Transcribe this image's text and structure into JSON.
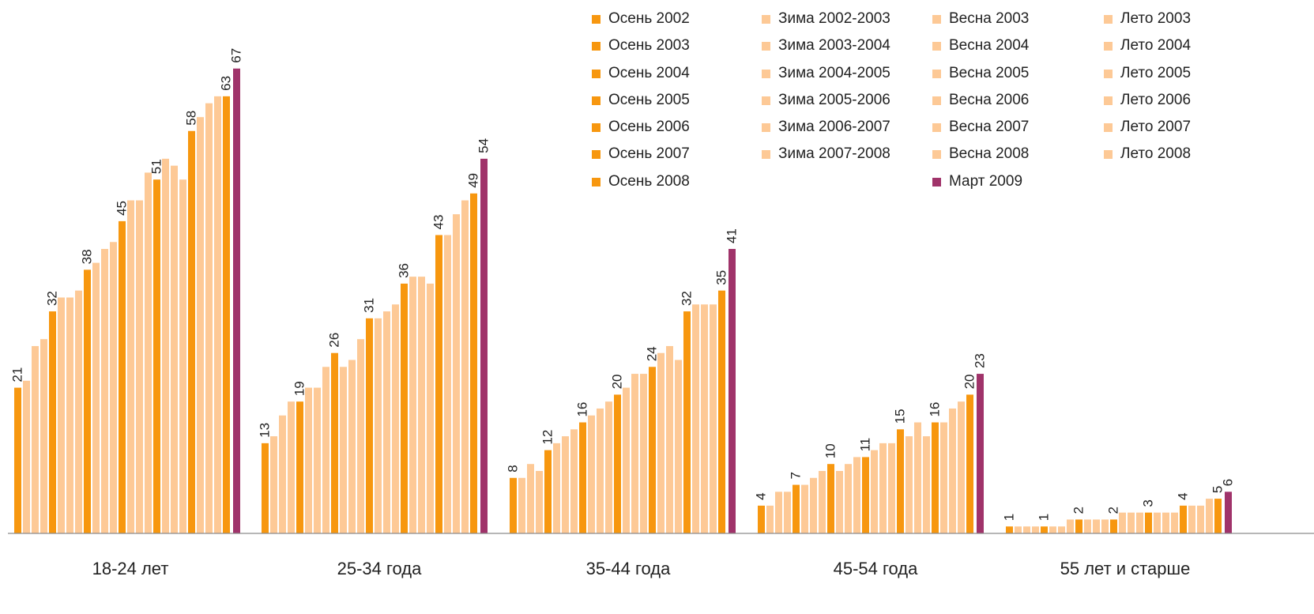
{
  "colors": {
    "autumn": "#F7970F",
    "other": "#FDC996",
    "march": "#A0336A",
    "axis": "#8C8C8C"
  },
  "legend": {
    "columns": [
      [
        "Осень 2002",
        "Осень 2003",
        "Осень 2004",
        "Осень 2005",
        "Осень 2006",
        "Осень 2007",
        "Осень 2008"
      ],
      [
        "Зима 2002-2003",
        "Зима 2003-2004",
        "Зима 2004-2005",
        "Зима 2005-2006",
        "Зима 2006-2007",
        "Зима 2007-2008"
      ],
      [
        "Весна 2003",
        "Весна 2004",
        "Весна 2005",
        "Весна 2006",
        "Весна 2007",
        "Весна 2008",
        "Март 2009"
      ],
      [
        "Лето 2003",
        "Лето 2004",
        "Лето 2005",
        "Лето 2006",
        "Лето 2007",
        "Лето 2008"
      ]
    ]
  },
  "chart_data": {
    "type": "bar",
    "title": "",
    "xlabel": "",
    "ylabel": "",
    "ylim": [
      0,
      70
    ],
    "grid": false,
    "legend_position": "top-right",
    "categories": [
      "18-24 лет",
      "25-34 года",
      "35-44 года",
      "45-54 года",
      "55 лет  и старше"
    ],
    "series_order": [
      "Осень 2002",
      "Зима 2002-2003",
      "Весна 2003",
      "Лето 2003",
      "Осень 2003",
      "Зима 2003-2004",
      "Весна 2004",
      "Лето 2004",
      "Осень 2004",
      "Зима 2004-2005",
      "Весна 2005",
      "Лето 2005",
      "Осень 2005",
      "Зима 2005-2006",
      "Весна 2006",
      "Лето 2006",
      "Осень 2006",
      "Зима 2006-2007",
      "Весна 2007",
      "Лето 2007",
      "Осень 2007",
      "Зима 2007-2008",
      "Весна 2008",
      "Лето 2008",
      "Осень 2008",
      "Март 2009"
    ],
    "groups": [
      {
        "category": "18-24 лет",
        "values": [
          21,
          22,
          27,
          28,
          32,
          34,
          34,
          35,
          38,
          39,
          41,
          42,
          45,
          48,
          48,
          52,
          51,
          54,
          53,
          51,
          58,
          60,
          62,
          63,
          63,
          67
        ]
      },
      {
        "category": "25-34 года",
        "values": [
          13,
          14,
          17,
          19,
          19,
          21,
          21,
          24,
          26,
          24,
          25,
          28,
          31,
          31,
          32,
          33,
          36,
          37,
          37,
          36,
          43,
          43,
          46,
          48,
          49,
          54
        ]
      },
      {
        "category": "35-44 года",
        "values": [
          8,
          8,
          10,
          9,
          12,
          13,
          14,
          15,
          16,
          17,
          18,
          19,
          20,
          21,
          23,
          23,
          24,
          26,
          27,
          25,
          32,
          33,
          33,
          33,
          35,
          41
        ]
      },
      {
        "category": "45-54 года",
        "values": [
          4,
          4,
          6,
          6,
          7,
          7,
          8,
          9,
          10,
          9,
          10,
          11,
          11,
          12,
          13,
          13,
          15,
          14,
          16,
          14,
          16,
          16,
          18,
          19,
          20,
          23
        ]
      },
      {
        "category": "55 лет  и старше",
        "values": [
          1,
          1,
          1,
          1,
          1,
          1,
          1,
          2,
          2,
          2,
          2,
          2,
          2,
          3,
          3,
          3,
          3,
          3,
          3,
          3,
          4,
          4,
          4,
          5,
          5,
          6
        ]
      }
    ],
    "data_labels": [
      [
        0,
        4,
        8,
        12,
        16,
        20,
        24,
        25
      ],
      [
        0,
        4,
        8,
        12,
        16,
        20,
        24,
        25
      ],
      [
        0,
        4,
        8,
        12,
        16,
        20,
        24,
        25
      ],
      [
        0,
        4,
        8,
        12,
        16,
        20,
        24,
        25
      ],
      [
        0,
        4,
        8,
        12,
        16,
        20,
        24,
        25
      ]
    ]
  }
}
